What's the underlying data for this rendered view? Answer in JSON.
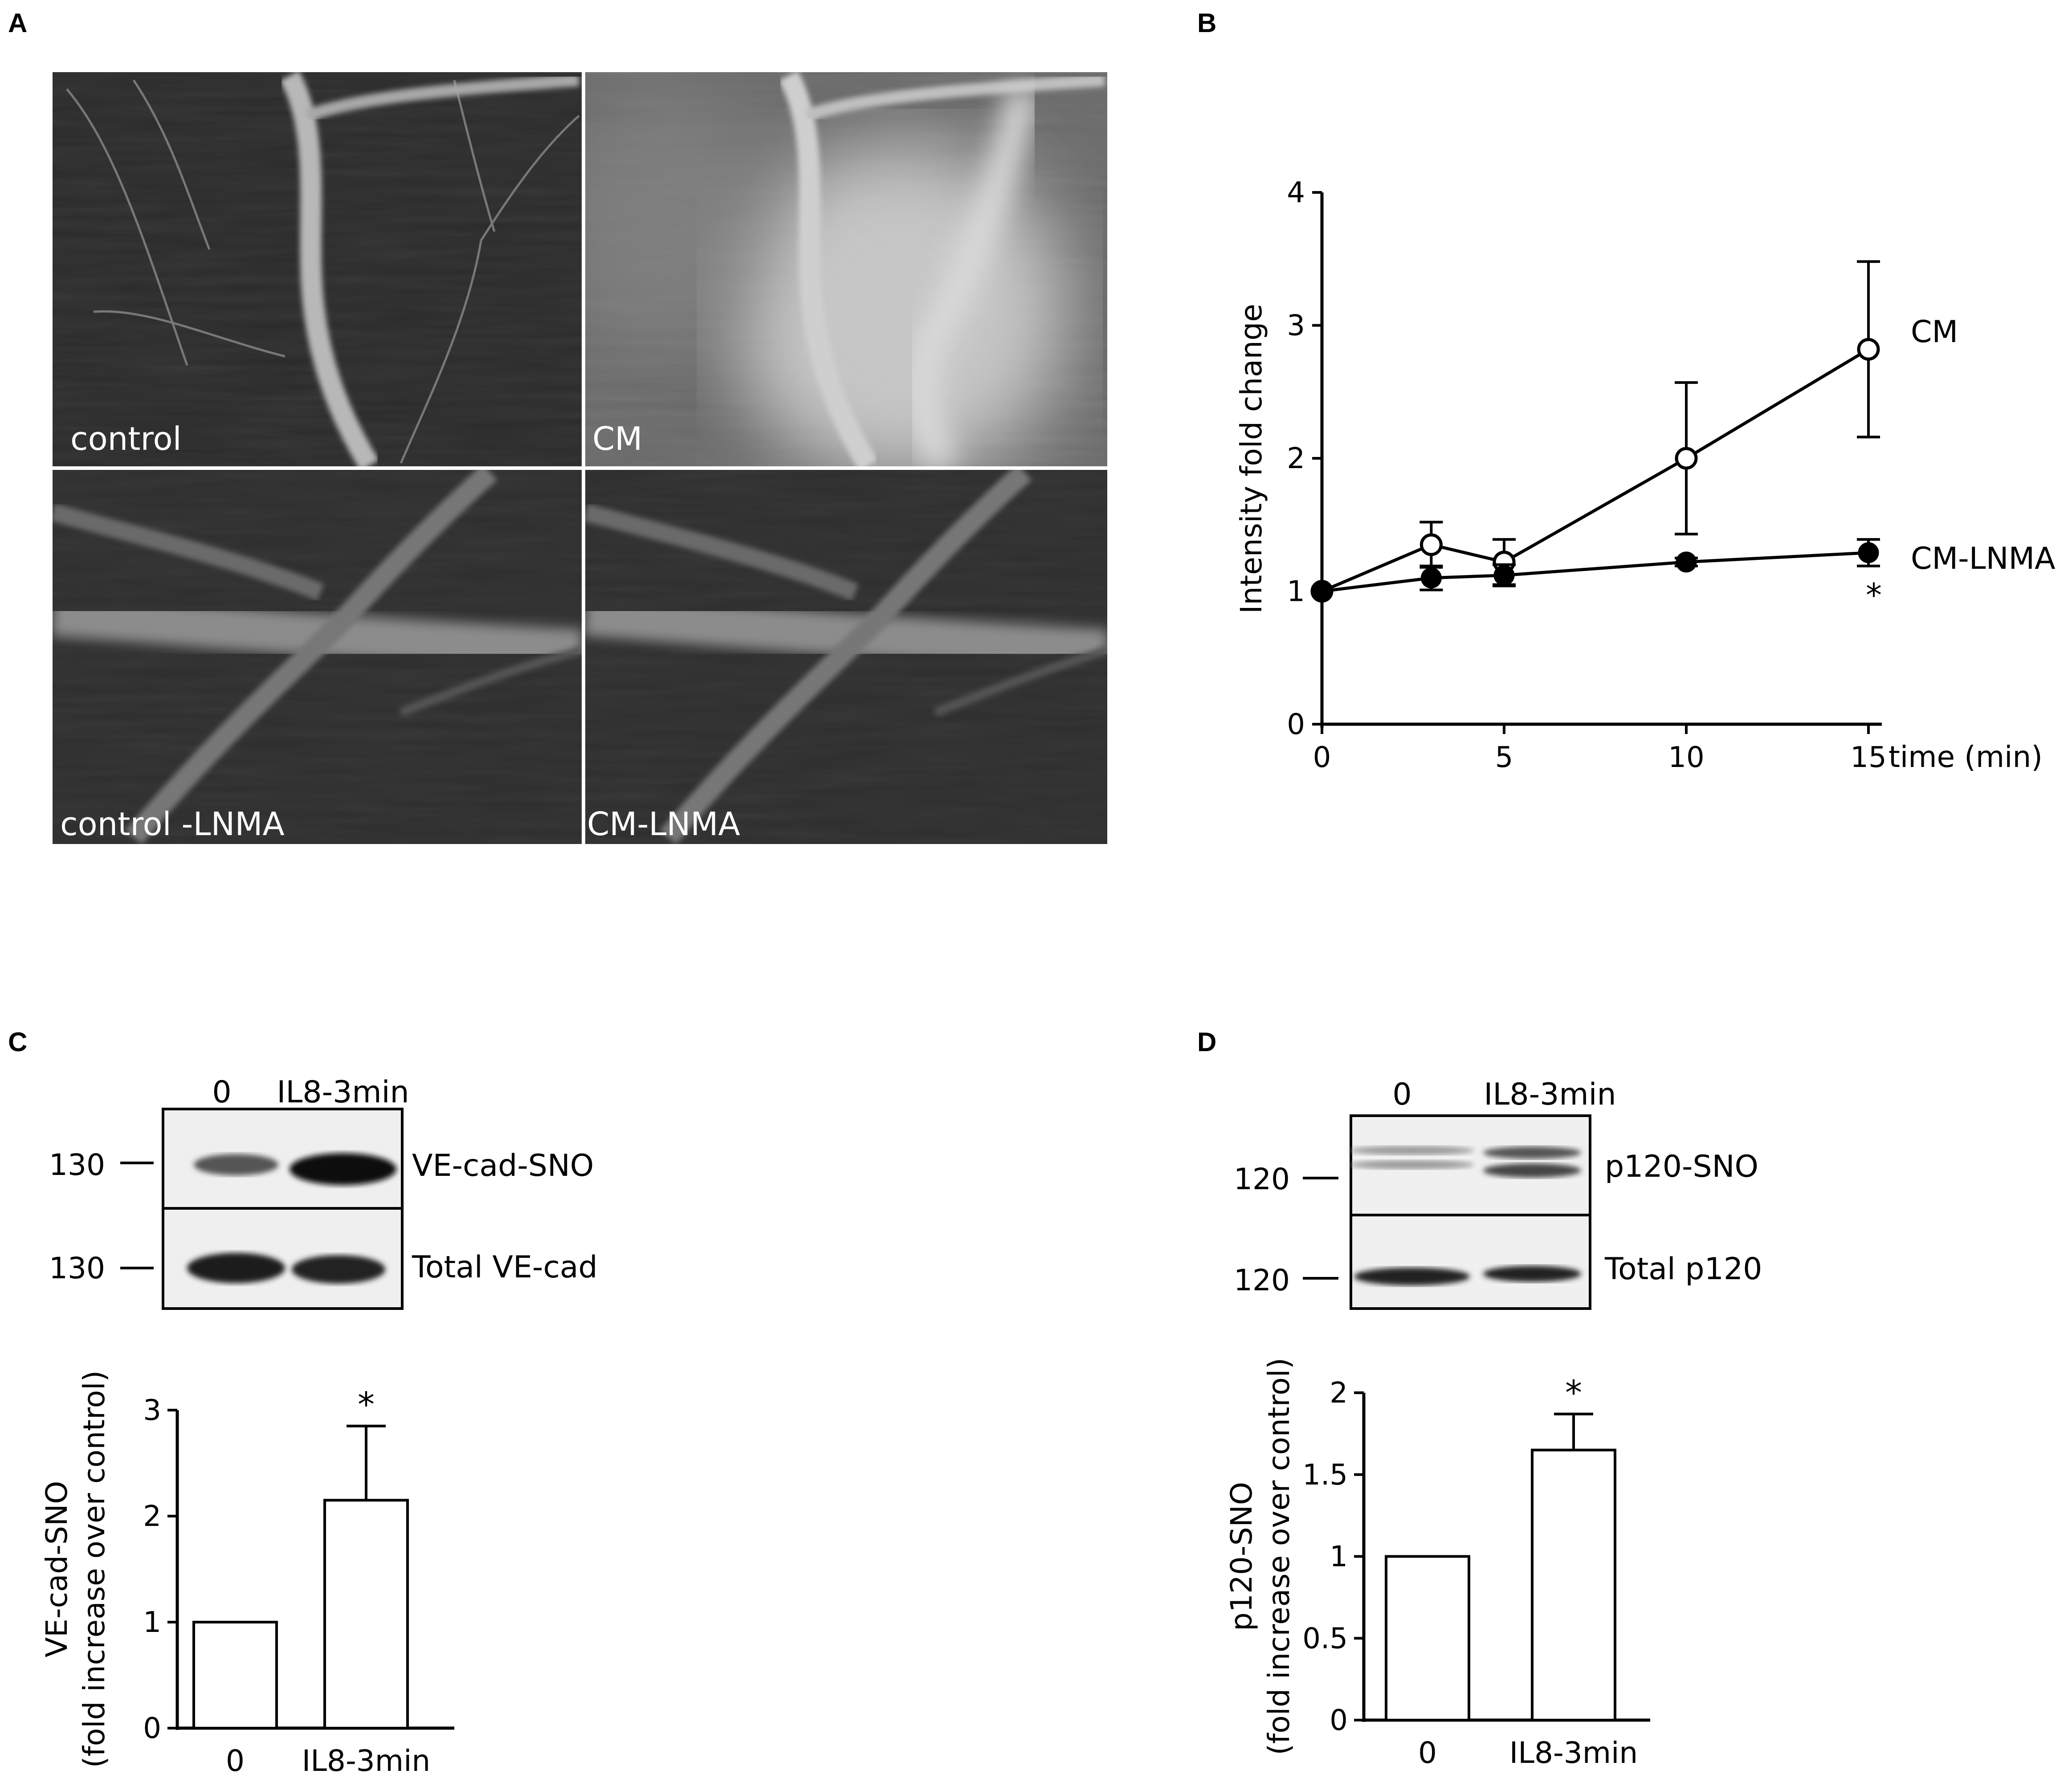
{
  "figure": {
    "panel_labels": [
      "A",
      "B",
      "C",
      "D"
    ]
  },
  "panel_a": {
    "images": [
      {
        "caption": "control"
      },
      {
        "caption": "CM"
      },
      {
        "caption": "control -LNMA"
      },
      {
        "caption": "CM-LNMA"
      }
    ]
  },
  "panel_c": {
    "blot": {
      "lane_labels": [
        "0",
        "IL8-3min"
      ],
      "rows": [
        {
          "marker": "130",
          "label": "VE-cad-SNO"
        },
        {
          "marker": "130",
          "label": "Total VE-cad"
        }
      ]
    }
  },
  "panel_d": {
    "blot": {
      "lane_labels": [
        "0",
        "IL8-3min"
      ],
      "rows": [
        {
          "marker": "120",
          "label": "p120-SNO"
        },
        {
          "marker": "120",
          "label": "Total p120"
        }
      ]
    }
  },
  "chart_data": [
    {
      "type": "line",
      "panel": "B",
      "xlabel": "time (min)",
      "ylabel": "Intensity fold change",
      "x": [
        0,
        3,
        5,
        10,
        15
      ],
      "xticks": [
        0,
        5,
        10,
        15
      ],
      "yticks": [
        0,
        1,
        2,
        3,
        4
      ],
      "xlim": [
        0,
        15
      ],
      "ylim": [
        0,
        4
      ],
      "grid": false,
      "series": [
        {
          "name": "CM",
          "marker": "open-circle",
          "values": [
            1.0,
            1.35,
            1.22,
            2.0,
            2.82
          ],
          "error": [
            0,
            0.17,
            0.17,
            0.57,
            0.66
          ]
        },
        {
          "name": "CM-LNMA",
          "marker": "filled-circle",
          "values": [
            1.0,
            1.1,
            1.12,
            1.22,
            1.29
          ],
          "error": [
            0,
            0.09,
            0.08,
            0.03,
            0.1
          ]
        }
      ],
      "annotations": [
        "*"
      ]
    },
    {
      "type": "bar",
      "panel": "C",
      "categories": [
        "0",
        "IL8-3min"
      ],
      "values": [
        1.0,
        2.15
      ],
      "error": [
        0,
        0.7
      ],
      "ylabel": "VE-cad-SNO\n(fold increase over control)",
      "ylabel_lines": [
        "VE-cad-SNO",
        "(fold increase over control)"
      ],
      "yticks": [
        0,
        1,
        2,
        3
      ],
      "ylim": [
        0,
        3
      ],
      "annotations": [
        "*"
      ]
    },
    {
      "type": "bar",
      "panel": "D",
      "categories": [
        "0",
        "IL8-3min"
      ],
      "values": [
        1.0,
        1.65
      ],
      "error": [
        0,
        0.22
      ],
      "ylabel": "p120-SNO\n(fold increase over control)",
      "ylabel_lines": [
        "p120-SNO",
        "(fold increase over control)"
      ],
      "yticks": [
        0,
        0.5,
        1,
        1.5,
        2
      ],
      "ylim": [
        0,
        2
      ],
      "annotations": [
        "*"
      ]
    }
  ]
}
